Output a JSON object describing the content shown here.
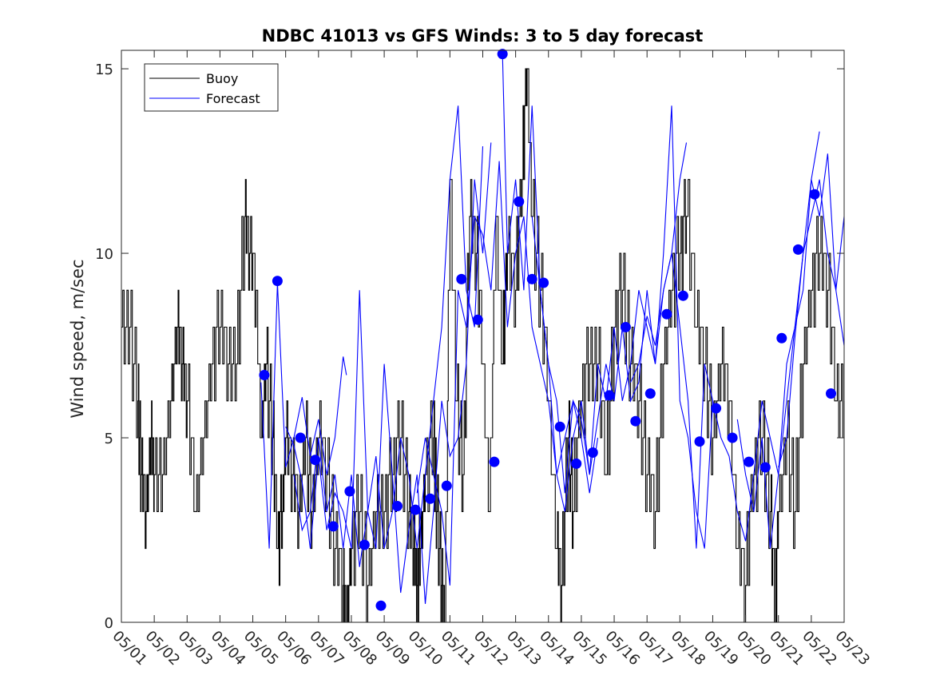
{
  "chart_data": {
    "type": "line",
    "title": "NDBC 41013 vs GFS Winds: 3 to 5 day forecast",
    "xlabel": "",
    "ylabel": "Wind speed, m/sec",
    "xlim": [
      0,
      22
    ],
    "ylim": [
      0,
      15.5
    ],
    "x_tick_labels": [
      "05/01",
      "05/02",
      "05/03",
      "05/04",
      "05/05",
      "05/06",
      "05/07",
      "05/08",
      "05/09",
      "05/10",
      "05/11",
      "05/12",
      "05/13",
      "05/14",
      "05/15",
      "05/16",
      "05/17",
      "05/18",
      "05/19",
      "05/20",
      "05/21",
      "05/22",
      "05/23"
    ],
    "y_ticks": [
      0,
      5,
      10,
      15
    ],
    "legend": [
      "Buoy",
      "Forecast"
    ],
    "legend_position": "top-left",
    "colors": {
      "buoy": "#000000",
      "forecast": "#0000ff",
      "markers": "#0000ff"
    },
    "buoy_keypoints": [
      [
        0.0,
        7.5
      ],
      [
        0.25,
        8
      ],
      [
        0.5,
        6
      ],
      [
        0.6,
        4
      ],
      [
        0.75,
        3
      ],
      [
        0.9,
        5
      ],
      [
        1.0,
        4
      ],
      [
        1.25,
        4
      ],
      [
        1.5,
        6
      ],
      [
        1.7,
        8
      ],
      [
        1.85,
        7
      ],
      [
        2.0,
        6
      ],
      [
        2.25,
        3
      ],
      [
        2.5,
        5
      ],
      [
        2.75,
        7
      ],
      [
        3.0,
        8
      ],
      [
        3.25,
        7
      ],
      [
        3.5,
        7
      ],
      [
        3.75,
        11
      ],
      [
        3.9,
        10
      ],
      [
        4.1,
        9
      ],
      [
        4.25,
        5
      ],
      [
        4.4,
        7
      ],
      [
        4.6,
        5
      ],
      [
        4.75,
        2
      ],
      [
        4.9,
        3
      ],
      [
        5.0,
        5
      ],
      [
        5.2,
        4
      ],
      [
        5.4,
        3
      ],
      [
        5.6,
        5
      ],
      [
        5.8,
        3
      ],
      [
        6.0,
        5
      ],
      [
        6.25,
        4
      ],
      [
        6.5,
        2
      ],
      [
        6.75,
        1
      ],
      [
        6.85,
        0
      ],
      [
        7.0,
        2
      ],
      [
        7.25,
        3
      ],
      [
        7.5,
        1
      ],
      [
        7.75,
        3
      ],
      [
        8.0,
        3
      ],
      [
        8.25,
        4
      ],
      [
        8.5,
        5
      ],
      [
        8.75,
        3
      ],
      [
        8.9,
        2
      ],
      [
        9.0,
        1
      ],
      [
        9.1,
        2
      ],
      [
        9.25,
        4
      ],
      [
        9.5,
        5
      ],
      [
        9.6,
        3
      ],
      [
        9.75,
        1
      ],
      [
        9.85,
        0
      ],
      [
        10.0,
        12
      ],
      [
        10.2,
        6
      ],
      [
        10.4,
        4
      ],
      [
        10.6,
        11
      ],
      [
        10.8,
        10
      ],
      [
        11.0,
        7
      ],
      [
        11.2,
        3
      ],
      [
        11.4,
        11
      ],
      [
        11.6,
        7
      ],
      [
        11.75,
        10
      ],
      [
        12.0,
        9
      ],
      [
        12.2,
        12
      ],
      [
        12.35,
        15
      ],
      [
        12.5,
        11
      ],
      [
        12.75,
        9
      ],
      [
        13.0,
        6
      ],
      [
        13.25,
        2
      ],
      [
        13.4,
        1
      ],
      [
        13.6,
        5
      ],
      [
        13.75,
        3
      ],
      [
        14.0,
        6
      ],
      [
        14.25,
        7
      ],
      [
        14.5,
        7
      ],
      [
        14.75,
        4
      ],
      [
        15.0,
        8
      ],
      [
        15.25,
        9
      ],
      [
        15.5,
        7
      ],
      [
        15.75,
        6
      ],
      [
        16.0,
        4
      ],
      [
        16.25,
        3
      ],
      [
        16.5,
        7
      ],
      [
        16.75,
        9
      ],
      [
        17.0,
        10
      ],
      [
        17.2,
        11
      ],
      [
        17.5,
        8
      ],
      [
        17.75,
        7
      ],
      [
        18.0,
        5
      ],
      [
        18.25,
        7
      ],
      [
        18.5,
        6
      ],
      [
        18.75,
        2
      ],
      [
        19.0,
        1
      ],
      [
        19.25,
        4
      ],
      [
        19.5,
        5
      ],
      [
        19.75,
        3
      ],
      [
        19.9,
        0
      ],
      [
        20.0,
        3
      ],
      [
        20.25,
        5
      ],
      [
        20.5,
        3
      ],
      [
        20.75,
        7
      ],
      [
        21.0,
        9
      ],
      [
        21.25,
        10
      ],
      [
        21.5,
        9
      ],
      [
        21.75,
        6
      ],
      [
        22.0,
        6
      ]
    ],
    "forecast_series": [
      {
        "points": [
          [
            4.25,
            6.5
          ],
          [
            4.5,
            2
          ],
          [
            4.75,
            9.2
          ],
          [
            5.0,
            4.2
          ],
          [
            5.25,
            5
          ],
          [
            5.5,
            6.1
          ],
          [
            5.75,
            4.5
          ],
          [
            6.0,
            5.5
          ],
          [
            6.25,
            4
          ],
          [
            6.5,
            5
          ],
          [
            6.75,
            7.2
          ],
          [
            6.85,
            6.7
          ]
        ]
      },
      {
        "points": [
          [
            5.0,
            5.3
          ],
          [
            5.25,
            4.8
          ],
          [
            5.5,
            3.8
          ],
          [
            5.75,
            2
          ],
          [
            6.0,
            4.5
          ],
          [
            6.25,
            2.5
          ],
          [
            6.5,
            3.5
          ],
          [
            6.75,
            3
          ],
          [
            7.0,
            2
          ],
          [
            7.25,
            9
          ],
          [
            7.5,
            3
          ],
          [
            7.75,
            2
          ],
          [
            8.0,
            7
          ],
          [
            8.25,
            4
          ],
          [
            8.5,
            0.8
          ],
          [
            8.75,
            2.5
          ],
          [
            9.0,
            4
          ],
          [
            9.25,
            0.5
          ],
          [
            9.5,
            3
          ],
          [
            9.75,
            6
          ],
          [
            10.0,
            4.5
          ],
          [
            10.25,
            5
          ],
          [
            10.5,
            7
          ],
          [
            10.75,
            12
          ],
          [
            11.0,
            10
          ],
          [
            11.25,
            13
          ]
        ]
      },
      {
        "points": [
          [
            5.25,
            4
          ],
          [
            5.5,
            2.5
          ],
          [
            5.75,
            3
          ],
          [
            6.0,
            5
          ],
          [
            6.25,
            3
          ],
          [
            6.5,
            4
          ],
          [
            6.75,
            2
          ],
          [
            7.0,
            4
          ],
          [
            7.25,
            1.5
          ],
          [
            7.5,
            3
          ],
          [
            7.75,
            4.5
          ],
          [
            8.0,
            2
          ],
          [
            8.25,
            3
          ],
          [
            8.5,
            5
          ],
          [
            8.75,
            4
          ],
          [
            9.0,
            2
          ],
          [
            9.25,
            4
          ],
          [
            9.5,
            6
          ],
          [
            9.75,
            8
          ],
          [
            10.0,
            12
          ],
          [
            10.25,
            14
          ],
          [
            10.5,
            9
          ],
          [
            10.75,
            8
          ],
          [
            11.0,
            12.9
          ]
        ]
      },
      {
        "points": [
          [
            9.0,
            3.5
          ],
          [
            9.25,
            5
          ],
          [
            9.5,
            4
          ],
          [
            9.75,
            3
          ],
          [
            10.0,
            1
          ],
          [
            10.25,
            9
          ],
          [
            10.5,
            8
          ],
          [
            10.75,
            11
          ],
          [
            11.0,
            10.5
          ],
          [
            11.25,
            9
          ],
          [
            11.5,
            12.5
          ],
          [
            11.75,
            8
          ],
          [
            12.0,
            10
          ],
          [
            12.25,
            11
          ],
          [
            12.5,
            8
          ],
          [
            12.75,
            7
          ],
          [
            13.0,
            6
          ],
          [
            13.25,
            4
          ],
          [
            13.5,
            5
          ],
          [
            13.75,
            6
          ],
          [
            14.0,
            5
          ],
          [
            14.25,
            3.5
          ],
          [
            14.5,
            5
          ]
        ]
      },
      {
        "points": [
          [
            11.6,
            15.4
          ],
          [
            11.75,
            10
          ],
          [
            12.0,
            12
          ],
          [
            12.25,
            9
          ],
          [
            12.5,
            14
          ],
          [
            12.75,
            9
          ],
          [
            13.0,
            7
          ],
          [
            13.25,
            6
          ],
          [
            13.5,
            3.5
          ],
          [
            13.75,
            6
          ],
          [
            14.0,
            5.5
          ],
          [
            14.25,
            4
          ],
          [
            14.5,
            7
          ],
          [
            14.75,
            6
          ],
          [
            15.0,
            8
          ],
          [
            15.25,
            6
          ],
          [
            15.5,
            7
          ],
          [
            15.75,
            9
          ],
          [
            16.0,
            8
          ],
          [
            16.25,
            7
          ],
          [
            16.5,
            9
          ],
          [
            16.75,
            10
          ],
          [
            17.0,
            12
          ],
          [
            17.2,
            13
          ]
        ]
      },
      {
        "points": [
          [
            12.5,
            11
          ],
          [
            12.75,
            9
          ],
          [
            13.0,
            7
          ],
          [
            13.25,
            4
          ],
          [
            13.5,
            3
          ],
          [
            13.75,
            5
          ],
          [
            14.0,
            6
          ],
          [
            14.25,
            4
          ],
          [
            14.5,
            5.5
          ],
          [
            14.75,
            7
          ],
          [
            15.0,
            6
          ],
          [
            15.25,
            8
          ],
          [
            15.5,
            6
          ],
          [
            15.75,
            6.5
          ],
          [
            16.0,
            9
          ],
          [
            16.25,
            7
          ],
          [
            16.5,
            10
          ],
          [
            16.75,
            14
          ],
          [
            17.0,
            6
          ],
          [
            17.25,
            5
          ],
          [
            17.5,
            3
          ],
          [
            17.75,
            2
          ],
          [
            18.0,
            6
          ]
        ]
      },
      {
        "points": [
          [
            15.5,
            6.5
          ],
          [
            15.75,
            7
          ],
          [
            16.0,
            8.3
          ],
          [
            16.25,
            7.5
          ],
          [
            16.5,
            9
          ],
          [
            16.75,
            10
          ],
          [
            17.0,
            8
          ],
          [
            17.25,
            6
          ],
          [
            17.5,
            2
          ],
          [
            17.75,
            7
          ],
          [
            18.0,
            6
          ],
          [
            18.25,
            5
          ],
          [
            18.5,
            4.5
          ],
          [
            18.75,
            3
          ],
          [
            19.0,
            2.2
          ],
          [
            19.25,
            4
          ],
          [
            19.5,
            6
          ],
          [
            19.75,
            5
          ],
          [
            20.0,
            4
          ],
          [
            20.25,
            6
          ],
          [
            20.5,
            8
          ],
          [
            20.75,
            9
          ],
          [
            21.0,
            12
          ],
          [
            21.25,
            13.3
          ]
        ]
      },
      {
        "points": [
          [
            18.75,
            5.5
          ],
          [
            19.0,
            4
          ],
          [
            19.25,
            3
          ],
          [
            19.5,
            5
          ],
          [
            19.75,
            2
          ],
          [
            20.0,
            4
          ],
          [
            20.25,
            7
          ],
          [
            20.5,
            8
          ],
          [
            20.75,
            10
          ],
          [
            21.0,
            12
          ],
          [
            21.25,
            11
          ],
          [
            21.5,
            12.7
          ],
          [
            21.75,
            9
          ],
          [
            22.0,
            11
          ]
        ]
      },
      {
        "points": [
          [
            20.0,
            4.2
          ],
          [
            20.25,
            5
          ],
          [
            20.5,
            7.7
          ],
          [
            20.75,
            10
          ],
          [
            21.0,
            11
          ],
          [
            21.25,
            12
          ],
          [
            21.5,
            10
          ],
          [
            21.75,
            9
          ],
          [
            22.0,
            7.5
          ]
        ]
      }
    ],
    "forecast_markers": [
      [
        4.35,
        6.7
      ],
      [
        4.75,
        9.25
      ],
      [
        5.45,
        5.0
      ],
      [
        5.9,
        4.4
      ],
      [
        6.45,
        2.6
      ],
      [
        6.95,
        3.55
      ],
      [
        7.4,
        2.1
      ],
      [
        7.9,
        0.45
      ],
      [
        8.4,
        3.15
      ],
      [
        8.95,
        3.05
      ],
      [
        9.4,
        3.35
      ],
      [
        9.9,
        3.7
      ],
      [
        10.35,
        9.3
      ],
      [
        10.85,
        8.2
      ],
      [
        11.35,
        4.35
      ],
      [
        11.6,
        15.4
      ],
      [
        12.1,
        11.4
      ],
      [
        12.5,
        9.3
      ],
      [
        12.85,
        9.2
      ],
      [
        13.35,
        5.3
      ],
      [
        13.85,
        4.3
      ],
      [
        14.35,
        4.6
      ],
      [
        14.85,
        6.15
      ],
      [
        15.35,
        8.0
      ],
      [
        15.65,
        5.45
      ],
      [
        16.1,
        6.2
      ],
      [
        16.6,
        8.35
      ],
      [
        17.1,
        8.85
      ],
      [
        17.6,
        4.9
      ],
      [
        18.1,
        5.8
      ],
      [
        18.6,
        5.0
      ],
      [
        19.1,
        4.35
      ],
      [
        19.6,
        4.2
      ],
      [
        20.1,
        7.7
      ],
      [
        20.6,
        10.1
      ],
      [
        21.1,
        11.6
      ],
      [
        21.6,
        6.2
      ]
    ]
  }
}
